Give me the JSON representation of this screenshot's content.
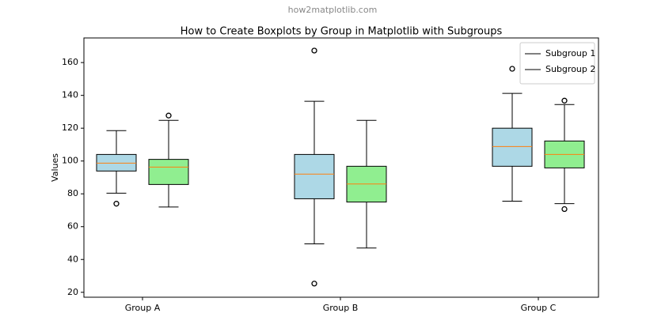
{
  "watermark": "how2matplotlib.com",
  "chart_data": {
    "type": "box",
    "title": "How to Create Boxplots by Group in Matplotlib with Subgroups",
    "y_label": "Values",
    "categories": [
      "Group A",
      "Group B",
      "Group C"
    ],
    "series": [
      {
        "name": "Subgroup 1",
        "color": "#add8e6",
        "boxes": [
          {
            "whislo": 80.4,
            "q1": 93.9,
            "med": 98.7,
            "q3": 104,
            "whishi": 118.5,
            "fliers": [
              74
            ]
          },
          {
            "whislo": 49.5,
            "q1": 77,
            "med": 92,
            "q3": 104,
            "whishi": 136.4,
            "fliers": [
              167.3,
              25.3
            ]
          },
          {
            "whislo": 75.5,
            "q1": 96.8,
            "med": 108.8,
            "q3": 120,
            "whishi": 141.2,
            "fliers": [
              156.2
            ]
          }
        ]
      },
      {
        "name": "Subgroup 2",
        "color": "#90ee90",
        "boxes": [
          {
            "whislo": 72,
            "q1": 85.7,
            "med": 96.3,
            "q3": 101,
            "whishi": 124.8,
            "fliers": [
              127.7
            ]
          },
          {
            "whislo": 47,
            "q1": 75,
            "med": 86,
            "q3": 96.8,
            "whishi": 124.8,
            "fliers": []
          },
          {
            "whislo": 74,
            "q1": 95.8,
            "med": 104,
            "q3": 112.2,
            "whishi": 134.4,
            "fliers": [
              136.8,
              70.7
            ]
          }
        ]
      }
    ],
    "median_color": "#ff7f0e",
    "legend_handle_color": "#000000",
    "legend": "upper right",
    "ylim": [
      17,
      175
    ],
    "yticks": [
      20,
      40,
      60,
      80,
      100,
      120,
      140,
      160
    ]
  }
}
